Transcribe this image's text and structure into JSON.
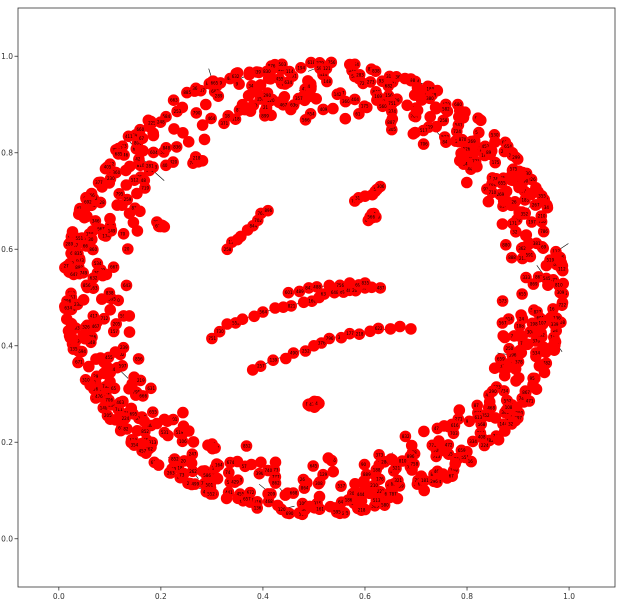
{
  "chart_data": {
    "type": "scatter",
    "title": "",
    "xlabel": "",
    "ylabel": "",
    "xlim": [
      -0.08,
      1.09
    ],
    "ylim": [
      -0.1,
      1.1
    ],
    "x_ticks": [
      "0.0",
      "0.2",
      "0.4",
      "0.6",
      "0.8",
      "1.0"
    ],
    "y_ticks": [
      "0.0",
      "0.2",
      "0.4",
      "0.6",
      "0.8",
      "1.0"
    ],
    "grid": false,
    "legend": "none",
    "node_color": "#ff0000",
    "edge_color": "#000000",
    "label_color": "#000000",
    "ring": {
      "center": [
        0.5,
        0.52
      ],
      "radius_x": 0.49,
      "radius_y": 0.47,
      "approx_nodes": 900
    },
    "clusters": [
      {
        "name": "",
        "center": [
          0.5,
          0.275
        ],
        "count": 18
      },
      {
        "name": "",
        "center": [
          0.27,
          0.78
        ],
        "count": 6
      },
      {
        "name": "",
        "center": [
          0.2,
          0.648
        ],
        "count": 8
      },
      {
        "name": "",
        "center": [
          0.61,
          0.665
        ],
        "count": 8
      }
    ],
    "chains": [
      {
        "name": "",
        "points": [
          [
            0.3,
            0.415
          ],
          [
            0.33,
            0.445
          ],
          [
            0.36,
            0.455
          ],
          [
            0.4,
            0.47
          ],
          [
            0.44,
            0.48
          ],
          [
            0.48,
            0.49
          ],
          [
            0.51,
            0.5
          ],
          [
            0.54,
            0.51
          ],
          [
            0.57,
            0.515
          ],
          [
            0.6,
            0.52
          ],
          [
            0.63,
            0.52
          ]
        ]
      },
      {
        "name": "",
        "points": [
          [
            0.38,
            0.35
          ],
          [
            0.42,
            0.37
          ],
          [
            0.46,
            0.385
          ],
          [
            0.5,
            0.4
          ],
          [
            0.53,
            0.415
          ],
          [
            0.57,
            0.425
          ],
          [
            0.61,
            0.43
          ],
          [
            0.65,
            0.435
          ],
          [
            0.69,
            0.435
          ]
        ]
      },
      {
        "name": "",
        "points": [
          [
            0.33,
            0.6
          ],
          [
            0.35,
            0.62
          ],
          [
            0.37,
            0.64
          ],
          [
            0.39,
            0.66
          ],
          [
            0.41,
            0.68
          ]
        ]
      },
      {
        "name": "",
        "points": [
          [
            0.45,
            0.51
          ],
          [
            0.49,
            0.52
          ],
          [
            0.53,
            0.525
          ],
          [
            0.57,
            0.53
          ],
          [
            0.6,
            0.53
          ]
        ]
      },
      {
        "name": "",
        "points": [
          [
            0.58,
            0.7
          ],
          [
            0.6,
            0.71
          ],
          [
            0.62,
            0.72
          ],
          [
            0.63,
            0.73
          ]
        ]
      }
    ]
  }
}
